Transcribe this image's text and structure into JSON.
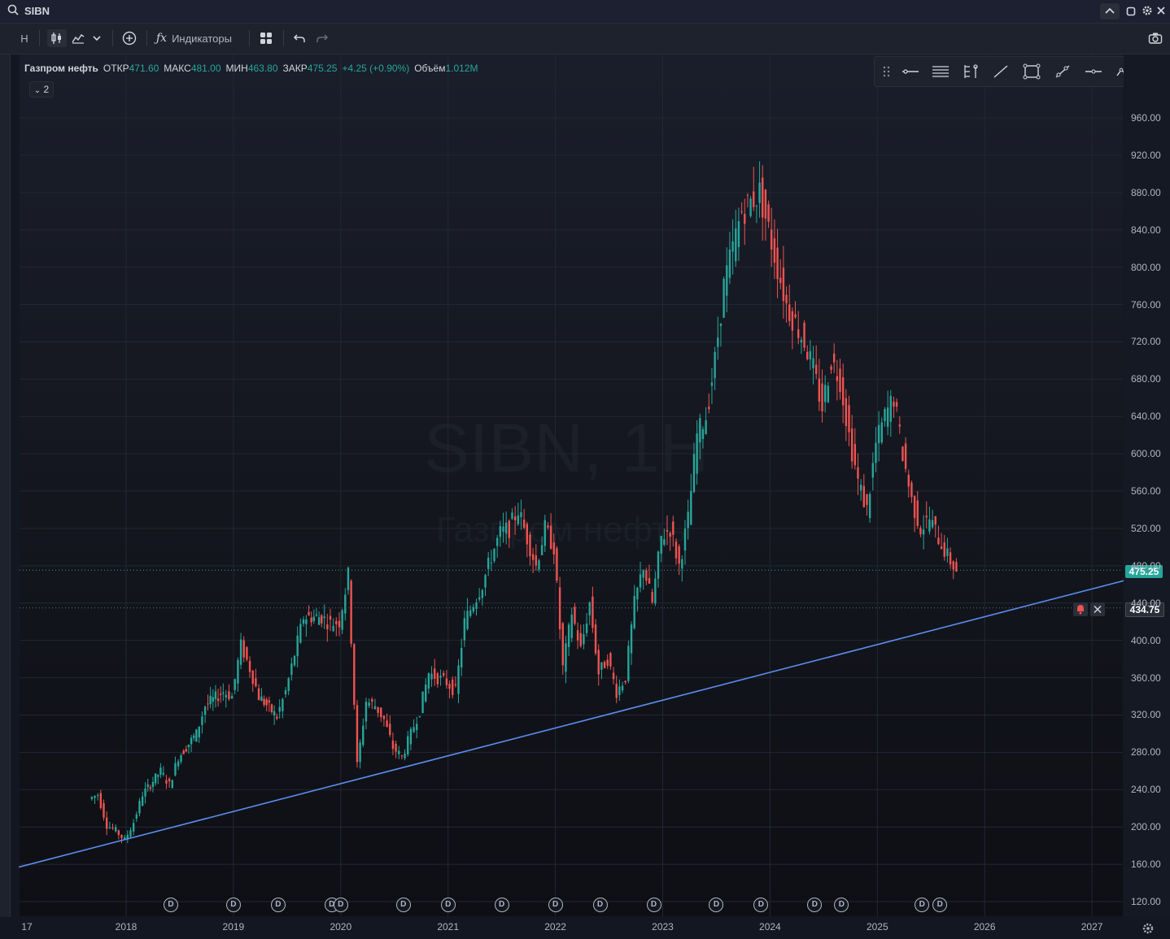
{
  "header": {
    "symbol": "SIBN"
  },
  "toolbar": {
    "interval": "H",
    "indicators_label": "Индикаторы"
  },
  "legend": {
    "name": "Газпром нефть",
    "open_label": "ОТКР",
    "open": "471.60",
    "high_label": "МАКС",
    "high": "481.00",
    "low_label": "МИН",
    "low": "463.80",
    "close_label": "ЗАКР",
    "close": "475.25",
    "change": "+4.25 (+0.90%)",
    "volume_label": "Объём",
    "volume": "1.012M",
    "collapsed_count": "2"
  },
  "watermark": {
    "symbol": "SIBN, 1H",
    "name": "Газпром нефть"
  },
  "price_scale": {
    "ticks": [
      "960.00",
      "920.00",
      "880.00",
      "840.00",
      "800.00",
      "760.00",
      "720.00",
      "680.00",
      "640.00",
      "600.00",
      "560.00",
      "520.00",
      "480.00",
      "440.00",
      "400.00",
      "360.00",
      "320.00",
      "280.00",
      "240.00",
      "200.00",
      "160.00",
      "120.00"
    ]
  },
  "time_scale": {
    "labels": [
      "17",
      "2018",
      "2019",
      "2020",
      "2021",
      "2022",
      "2023",
      "2024",
      "2025",
      "2026",
      "2027"
    ]
  },
  "badges": {
    "last_price": "475.25",
    "alert_price": "434.75"
  },
  "colors": {
    "up": "#26a69a",
    "down": "#ef5350",
    "trendline": "#5b8def",
    "background": "#131722"
  },
  "icons": [
    "search-icon",
    "chevron-up-icon",
    "maximize-icon",
    "gear-icon",
    "close-icon",
    "candles-icon",
    "area-chart-icon",
    "chevron-down-icon",
    "add-icon",
    "fx-icon",
    "layout-icon",
    "undo-icon",
    "redo-icon",
    "camera-icon",
    "alert-bell-icon",
    "remove-alert-icon",
    "settings-icon"
  ],
  "chart_data": {
    "type": "line",
    "title": "SIBN, 1H",
    "series": [
      {
        "name": "Газпром нефть",
        "x": [
          "2017-09",
          "2017-10",
          "2017-11",
          "2017-12",
          "2018-01",
          "2018-02",
          "2018-03",
          "2018-05",
          "2018-06",
          "2018-07",
          "2018-09",
          "2018-10",
          "2018-12",
          "2019-01",
          "2019-02",
          "2019-03",
          "2019-04",
          "2019-06",
          "2019-07",
          "2019-08",
          "2019-09",
          "2019-11",
          "2019-12",
          "2020-01",
          "2020-02",
          "2020-03",
          "2020-04",
          "2020-05",
          "2020-06",
          "2020-07",
          "2020-08",
          "2020-09",
          "2020-10",
          "2020-11",
          "2020-12",
          "2021-01",
          "2021-02",
          "2021-03",
          "2021-04",
          "2021-05",
          "2021-06",
          "2021-07",
          "2021-08",
          "2021-09",
          "2021-10",
          "2021-11",
          "2021-12",
          "2022-01",
          "2022-02",
          "2022-03",
          "2022-04",
          "2022-05",
          "2022-06",
          "2022-07",
          "2022-08",
          "2022-09",
          "2022-10",
          "2022-11",
          "2022-12",
          "2023-01",
          "2023-02",
          "2023-03",
          "2023-04",
          "2023-05",
          "2023-06",
          "2023-07",
          "2023-08",
          "2023-09",
          "2023-10",
          "2023-11",
          "2023-12",
          "2024-01",
          "2024-02",
          "2024-03",
          "2024-04",
          "2024-05",
          "2024-06",
          "2024-07",
          "2024-08",
          "2024-09",
          "2024-10",
          "2024-11",
          "2024-12",
          "2025-01",
          "2025-02",
          "2025-03",
          "2025-04",
          "2025-05",
          "2025-06",
          "2025-07",
          "2025-08",
          "2025-09",
          "2025-10"
        ],
        "y": [
          230,
          235,
          202,
          196,
          186,
          205,
          235,
          260,
          245,
          275,
          300,
          330,
          345,
          340,
          395,
          370,
          340,
          318,
          345,
          385,
          425,
          425,
          418,
          420,
          470,
          265,
          335,
          330,
          315,
          285,
          275,
          300,
          325,
          365,
          360,
          355,
          345,
          420,
          440,
          460,
          490,
          515,
          520,
          540,
          510,
          480,
          520,
          500,
          370,
          430,
          390,
          440,
          365,
          380,
          345,
          360,
          440,
          480,
          440,
          510,
          520,
          480,
          530,
          620,
          640,
          700,
          780,
          820,
          860,
          870,
          880,
          840,
          800,
          760,
          740,
          720,
          690,
          650,
          700,
          680,
          620,
          570,
          540,
          610,
          640,
          660,
          600,
          550,
          520,
          530,
          510,
          490,
          475
        ]
      },
      {
        "name": "Trendline",
        "x": [
          "2017-01",
          "2027-09"
        ],
        "y": [
          157,
          475
        ]
      }
    ],
    "ylim": [
      110,
      1000
    ],
    "xlabels": [
      "2018",
      "2019",
      "2020",
      "2021",
      "2022",
      "2023",
      "2024",
      "2025",
      "2026",
      "2027"
    ],
    "last_price": 475.25,
    "alert_level": 434.75,
    "dividend_markers": [
      "2018-06",
      "2019-01",
      "2019-06",
      "2019-12",
      "2020-01",
      "2020-08",
      "2021-01",
      "2021-07",
      "2022-01",
      "2022-06",
      "2022-12",
      "2023-07",
      "2023-12",
      "2024-06",
      "2024-09",
      "2025-06",
      "2025-08"
    ]
  }
}
